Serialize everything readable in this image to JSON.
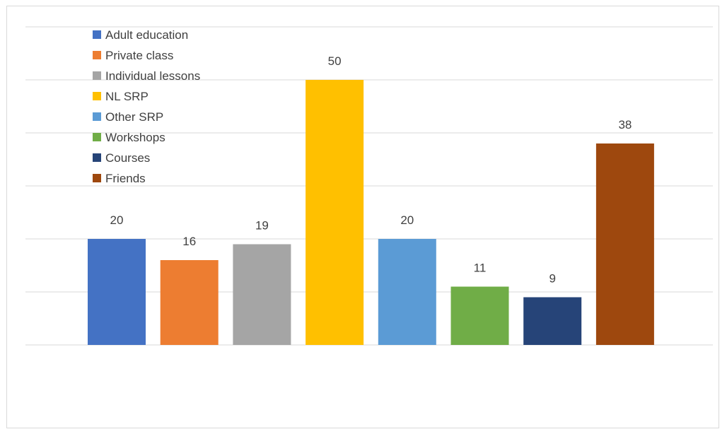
{
  "chart_data": {
    "type": "bar",
    "title": "",
    "xlabel": "",
    "ylabel": "",
    "ylim": [
      0,
      60
    ],
    "grid": true,
    "legend_position": "top-left",
    "categories": [
      "Adult education",
      "Private class",
      "Individual lessons",
      "NL SRP",
      "Other SRP",
      "Workshops",
      "Courses",
      "Friends"
    ],
    "values": [
      20,
      16,
      19,
      50,
      20,
      11,
      9,
      38
    ],
    "colors": [
      "#4472c4",
      "#ed7d31",
      "#a5a5a5",
      "#ffc000",
      "#5b9bd5",
      "#70ad47",
      "#264478",
      "#9e480e"
    ]
  }
}
